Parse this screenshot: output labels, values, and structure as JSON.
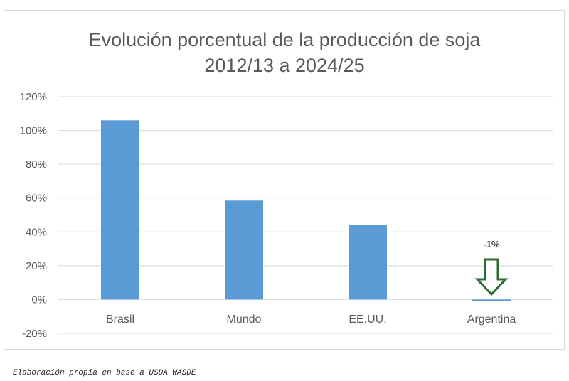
{
  "chart_data": {
    "type": "bar",
    "title_lines": [
      "Evolución porcentual de la producción de soja",
      "2012/13 a 2024/25"
    ],
    "categories": [
      "Brasil",
      "Mundo",
      "EE.UU.",
      "Argentina"
    ],
    "values": [
      106,
      58.5,
      44,
      -1
    ],
    "value_unit": "%",
    "ylim": [
      -20,
      120
    ],
    "yticks": [
      "120%",
      "100%",
      "80%",
      "60%",
      "40%",
      "20%",
      "0%",
      "-20%"
    ],
    "grid": true,
    "bar_color": "#5b9bd5",
    "annotation": {
      "category": "Argentina",
      "text": "-1%",
      "icon": "arrow-down-icon",
      "color": "#2e6b2e"
    }
  },
  "source": "Elaboración propia en base a USDA WASDE"
}
